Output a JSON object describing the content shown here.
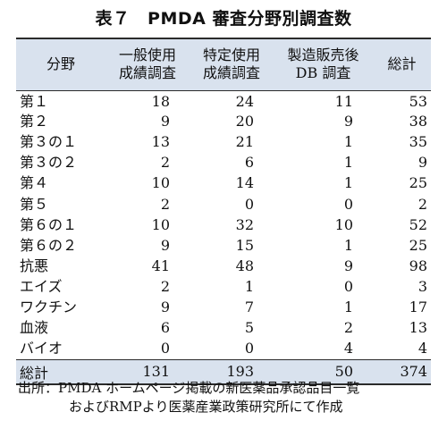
{
  "title": "表７　PMDA 審査分野別調査数",
  "headers": [
    [
      "分野",
      ""
    ],
    [
      "一般使用",
      "成績調査"
    ],
    [
      "特定使用",
      "成績調査"
    ],
    [
      "製造販売後",
      "DB 調査"
    ],
    [
      "総計",
      ""
    ]
  ],
  "rows": [
    [
      "第１",
      "18",
      "24",
      "11",
      "53"
    ],
    [
      "第２",
      "9",
      "20",
      "9",
      "38"
    ],
    [
      "第３の１",
      "13",
      "21",
      "1",
      "35"
    ],
    [
      "第３の２",
      "2",
      "6",
      "1",
      "9"
    ],
    [
      "第４",
      "10",
      "14",
      "1",
      "25"
    ],
    [
      "第５",
      "2",
      "0",
      "0",
      "2"
    ],
    [
      "第６の１",
      "10",
      "32",
      "10",
      "52"
    ],
    [
      "第６の２",
      "9",
      "15",
      "1",
      "25"
    ],
    [
      "抗悪",
      "41",
      "48",
      "9",
      "98"
    ],
    [
      "エイズ",
      "2",
      "1",
      "0",
      "3"
    ],
    [
      "ワクチン",
      "9",
      "7",
      "1",
      "17"
    ],
    [
      "血液",
      "6",
      "5",
      "2",
      "13"
    ],
    [
      "バイオ",
      "0",
      "0",
      "4",
      "4"
    ]
  ],
  "total": [
    "総計",
    "131",
    "193",
    "50",
    "374"
  ],
  "source": {
    "line1": "出所：PMDA ホームページ掲載の新医薬品承認品目一覧",
    "line2": "およびRMPより医薬産業政策研究所にて作成"
  }
}
